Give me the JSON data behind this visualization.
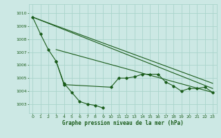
{
  "bg_color": "#cce8e4",
  "grid_color": "#aad4cc",
  "line_color": "#1a5c1a",
  "title": "Graphe pression niveau de la mer (hPa)",
  "xlim": [
    -0.5,
    23.5
  ],
  "ylim": [
    1002.3,
    1010.7
  ],
  "yticks": [
    1003,
    1004,
    1005,
    1006,
    1007,
    1008,
    1009,
    1010
  ],
  "xticks": [
    0,
    1,
    2,
    3,
    4,
    5,
    6,
    7,
    8,
    9,
    10,
    11,
    12,
    13,
    14,
    15,
    16,
    17,
    18,
    19,
    20,
    21,
    22,
    23
  ],
  "series1_x": [
    0,
    1,
    2,
    3,
    4,
    5,
    6,
    7,
    8,
    9
  ],
  "series1_y": [
    1009.7,
    1008.4,
    1007.2,
    1006.3,
    1004.6,
    1003.9,
    1003.2,
    1003.0,
    1002.9,
    1002.7
  ],
  "series2_x": [
    3,
    4,
    10,
    11,
    12,
    13,
    14,
    15,
    16,
    17,
    18,
    19,
    20,
    21,
    22,
    23
  ],
  "series2_y": [
    1006.3,
    1004.5,
    1004.3,
    1005.0,
    1005.0,
    1005.1,
    1005.3,
    1005.3,
    1005.3,
    1004.7,
    1004.4,
    1004.0,
    1004.2,
    1004.2,
    1004.3,
    1003.9
  ],
  "straight_lines": [
    {
      "x0": 0,
      "y0": 1009.7,
      "x1": 23,
      "y1": 1004.6
    },
    {
      "x0": 0,
      "y0": 1009.7,
      "x1": 23,
      "y1": 1004.2
    },
    {
      "x0": 3,
      "y0": 1007.2,
      "x1": 23,
      "y1": 1003.9
    }
  ]
}
